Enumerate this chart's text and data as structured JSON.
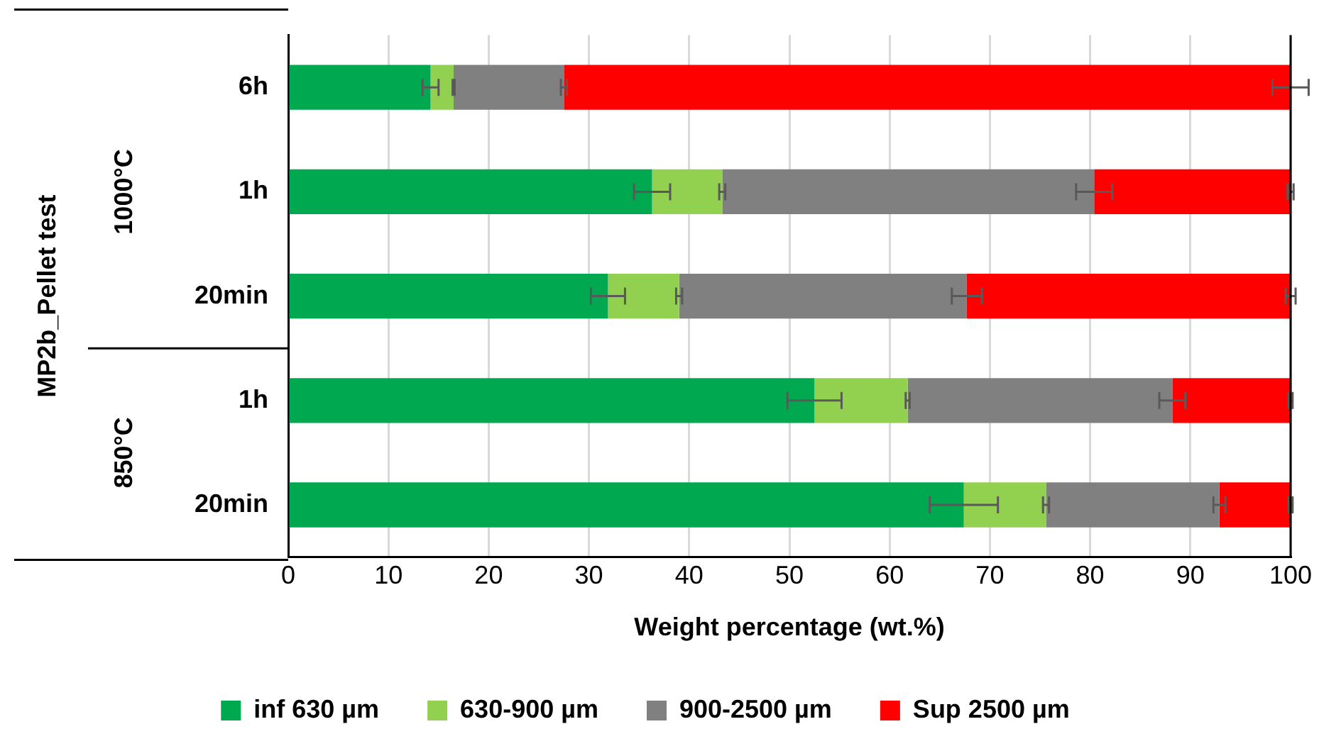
{
  "chart_data": {
    "type": "bar",
    "orientation": "horizontal",
    "stacked": true,
    "categories": [
      "6h",
      "1h",
      "20min",
      "1h",
      "20min"
    ],
    "xlabel": "Weight percentage (wt.%)",
    "annotations": [
      "MP2b_Pellet test",
      "1000°C",
      "850°C"
    ],
    "series": [
      {
        "name": "inf 630 µm",
        "color": "#00a84f",
        "values": [
          14.2,
          36.3,
          31.9,
          52.5,
          67.4
        ],
        "errors": [
          0.8,
          1.8,
          1.7,
          2.7,
          3.4
        ]
      },
      {
        "name": "630-900 µm",
        "color": "#92d050",
        "values": [
          2.3,
          7.0,
          7.1,
          9.3,
          8.2
        ],
        "errors": [
          0.1,
          0.3,
          0.3,
          0.2,
          0.3
        ]
      },
      {
        "name": "900-2500 µm",
        "color": "#808080",
        "values": [
          11.0,
          37.1,
          28.7,
          26.4,
          17.3
        ],
        "errors": [
          0.3,
          1.8,
          1.5,
          1.3,
          0.6
        ]
      },
      {
        "name": "Sup 2500 µm",
        "color": "#ff0000",
        "values": [
          72.5,
          19.6,
          32.3,
          11.8,
          7.1
        ],
        "errors": [
          1.8,
          0.3,
          0.5,
          0.2,
          0.2
        ]
      }
    ],
    "xlim": [
      0,
      100
    ],
    "xticks": [
      0,
      10,
      20,
      30,
      40,
      50,
      60,
      70,
      80,
      90,
      100
    ],
    "grid": "x",
    "legend": "bottom"
  }
}
